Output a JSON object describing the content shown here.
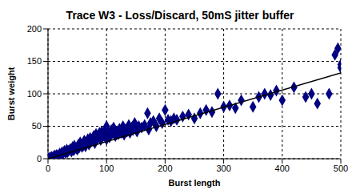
{
  "chart_data": {
    "type": "scatter",
    "title": "Trace W3 - Loss/Discard, 50mS jitter buffer",
    "x_label": "Burst length",
    "y_label": "Burst weight",
    "xlim": [
      0,
      500
    ],
    "xticks": [
      0,
      100,
      200,
      300,
      400,
      500
    ],
    "ylim": [
      0,
      200
    ],
    "yticks": [
      0,
      50,
      100,
      150,
      200
    ],
    "grid": true,
    "series": [
      {
        "type": "scatter",
        "color": "#000080",
        "marker": "diamond",
        "x": [
          1,
          2,
          3,
          5,
          6,
          8,
          10,
          12,
          14,
          15,
          18,
          20,
          22,
          24,
          25,
          28,
          30,
          32,
          33,
          35,
          38,
          40,
          42,
          44,
          45,
          48,
          50,
          52,
          53,
          55,
          58,
          60,
          62,
          64,
          65,
          68,
          70,
          72,
          73,
          75,
          78,
          80,
          82,
          83,
          85,
          88,
          90,
          92,
          93,
          95,
          98,
          100,
          100,
          102,
          105,
          108,
          110,
          112,
          115,
          118,
          120,
          122,
          125,
          128,
          130,
          133,
          135,
          138,
          140,
          143,
          145,
          148,
          150,
          152,
          155,
          160,
          165,
          170,
          172,
          175,
          180,
          185,
          190,
          195,
          200,
          205,
          210,
          215,
          220,
          230,
          240,
          250,
          260,
          270,
          280,
          290,
          300,
          310,
          320,
          330,
          350,
          360,
          370,
          380,
          390,
          400,
          420,
          440,
          450,
          460,
          480,
          490,
          495,
          500,
          500
        ],
        "values": [
          0,
          1,
          1,
          2,
          3,
          2,
          4,
          5,
          3,
          6,
          5,
          8,
          6,
          10,
          7,
          12,
          9,
          14,
          10,
          12,
          15,
          11,
          18,
          13,
          20,
          16,
          14,
          22,
          17,
          25,
          18,
          20,
          28,
          19,
          24,
          30,
          22,
          32,
          26,
          28,
          35,
          24,
          38,
          30,
          33,
          40,
          29,
          42,
          34,
          36,
          45,
          30,
          50,
          38,
          33,
          44,
          40,
          48,
          35,
          42,
          38,
          46,
          40,
          50,
          37,
          45,
          42,
          52,
          40,
          48,
          44,
          55,
          46,
          42,
          50,
          48,
          52,
          70,
          45,
          55,
          58,
          50,
          62,
          55,
          75,
          60,
          58,
          62,
          60,
          65,
          68,
          62,
          70,
          75,
          72,
          100,
          80,
          82,
          78,
          90,
          80,
          95,
          100,
          98,
          105,
          90,
          110,
          95,
          100,
          85,
          100,
          160,
          170,
          145,
          140
        ]
      },
      {
        "type": "line",
        "color": "#000000",
        "x": [
          0,
          500
        ],
        "values": [
          0,
          132
        ]
      }
    ]
  }
}
